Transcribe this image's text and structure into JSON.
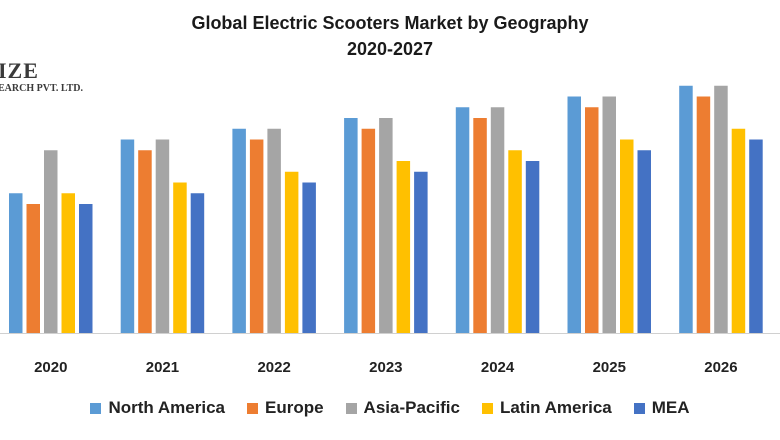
{
  "title_line1": "Global Electric Scooters Market by Geography",
  "title_line2": "2020-2027",
  "watermark": {
    "line1": "IZE",
    "line2": "EARCH PVT. LTD."
  },
  "colors": {
    "north_america": "#5b9bd5",
    "europe": "#ed7d31",
    "asia_pacific": "#a5a5a5",
    "latin_america": "#ffc000",
    "mea": "#4472c4"
  },
  "chart_data": {
    "type": "bar",
    "title": "Global Electric Scooters Market by Geography 2020-2027",
    "categories": [
      "2020",
      "2021",
      "2022",
      "2023",
      "2024",
      "2025",
      "2026"
    ],
    "series": [
      {
        "name": "North America",
        "color": "#5b9bd5",
        "values": [
          130,
          180,
          190,
          200,
          210,
          220,
          230
        ]
      },
      {
        "name": "Europe",
        "color": "#ed7d31",
        "values": [
          120,
          170,
          180,
          190,
          200,
          210,
          220
        ]
      },
      {
        "name": "Asia-Pacific",
        "color": "#a5a5a5",
        "values": [
          170,
          180,
          190,
          200,
          210,
          220,
          230
        ]
      },
      {
        "name": "Latin America",
        "color": "#ffc000",
        "values": [
          130,
          140,
          150,
          160,
          170,
          180,
          190
        ]
      },
      {
        "name": "MEA",
        "color": "#4472c4",
        "values": [
          120,
          130,
          140,
          150,
          160,
          170,
          180
        ]
      }
    ],
    "ylim": [
      0,
      240
    ],
    "legend_position": "bottom",
    "grid": false
  }
}
